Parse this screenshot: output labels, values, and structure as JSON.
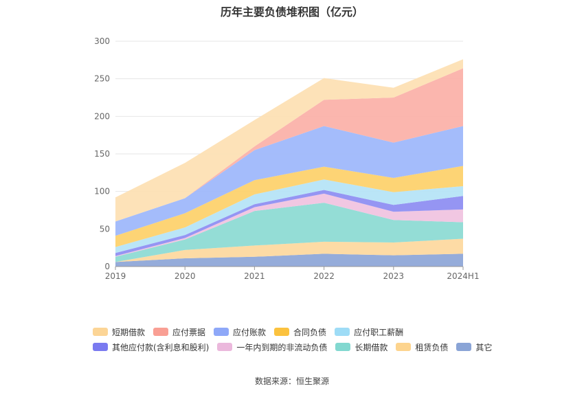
{
  "chart_data": {
    "type": "area",
    "stacked": true,
    "title": "历年主要负债堆积图（亿元）",
    "categories": [
      "2019",
      "2020",
      "2021",
      "2022",
      "2023",
      "2024H1"
    ],
    "ylim": [
      0,
      300
    ],
    "yticks": [
      0,
      50,
      100,
      150,
      200,
      250,
      300
    ],
    "grid": true,
    "legend_position": "bottom",
    "series": [
      {
        "name": "其它",
        "color": "#8fa8d8",
        "values": [
          6,
          11,
          13,
          17,
          15,
          17
        ]
      },
      {
        "name": "租赁负债",
        "color": "#fdd9a0",
        "values": [
          0,
          11,
          15,
          16,
          17,
          20
        ]
      },
      {
        "name": "长期借款",
        "color": "#8edbd4",
        "values": [
          7,
          14,
          46,
          52,
          30,
          22
        ]
      },
      {
        "name": "一年内到期的非流动负债",
        "color": "#f0c4e0",
        "values": [
          1,
          2,
          5,
          12,
          11,
          17
        ]
      },
      {
        "name": "其他应付款(含利息和股利)",
        "color": "#8f8ff2",
        "values": [
          4,
          4,
          4,
          5,
          9,
          18
        ]
      },
      {
        "name": "应付职工薪酬",
        "color": "#b6e4f7",
        "values": [
          8,
          10,
          13,
          14,
          17,
          13
        ]
      },
      {
        "name": "合同负债",
        "color": "#fdd26e",
        "values": [
          15,
          19,
          19,
          17,
          19,
          27
        ]
      },
      {
        "name": "应付账款",
        "color": "#9fb8fb",
        "values": [
          19,
          20,
          40,
          54,
          47,
          53
        ]
      },
      {
        "name": "应付票据",
        "color": "#fbb2aa",
        "values": [
          0,
          0,
          5,
          35,
          60,
          77
        ]
      },
      {
        "name": "短期借款",
        "color": "#fde0b4",
        "values": [
          32,
          47,
          35,
          29,
          13,
          12
        ]
      }
    ],
    "source": "数据来源：恒生聚源"
  },
  "legend": {
    "row1": [
      {
        "label": "短期借款",
        "color": "#fcd596"
      },
      {
        "label": "应付票据",
        "color": "#f99f94"
      },
      {
        "label": "应付账款",
        "color": "#8ea8f8"
      },
      {
        "label": "合同负债",
        "color": "#fbc23f"
      },
      {
        "label": "应付职工薪酬",
        "color": "#9edcf6"
      }
    ],
    "row2": [
      {
        "label": "其他应付款(含利息和股利)",
        "color": "#7a7af0"
      },
      {
        "label": "一年内到期的非流动负债",
        "color": "#ebb8dc"
      },
      {
        "label": "长期借款",
        "color": "#82d8d0"
      },
      {
        "label": "租赁负债",
        "color": "#fdd48e"
      },
      {
        "label": "其它",
        "color": "#8aa4d6"
      }
    ]
  }
}
